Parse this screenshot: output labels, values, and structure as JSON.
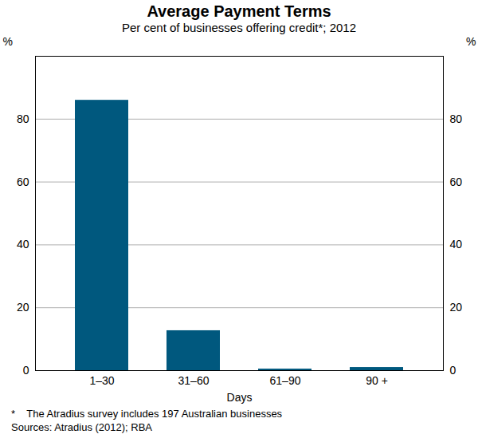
{
  "chart_data": {
    "type": "bar",
    "title": "Average Payment Terms",
    "subtitle": "Per cent of businesses offering credit*; 2012",
    "x_label": "Days",
    "y_label": "%",
    "categories": [
      "1–30",
      "31–60",
      "61–90",
      "90 +"
    ],
    "values": [
      86,
      12.7,
      0.5,
      1
    ],
    "color": "#00587e",
    "ylim": [
      0,
      100
    ],
    "yticks": [
      0,
      20,
      40,
      60,
      80
    ],
    "grid": true,
    "notes": [
      "*    The Atradius survey includes 197 Australian businesses",
      "Sources: Atradius (2012); RBA"
    ]
  }
}
